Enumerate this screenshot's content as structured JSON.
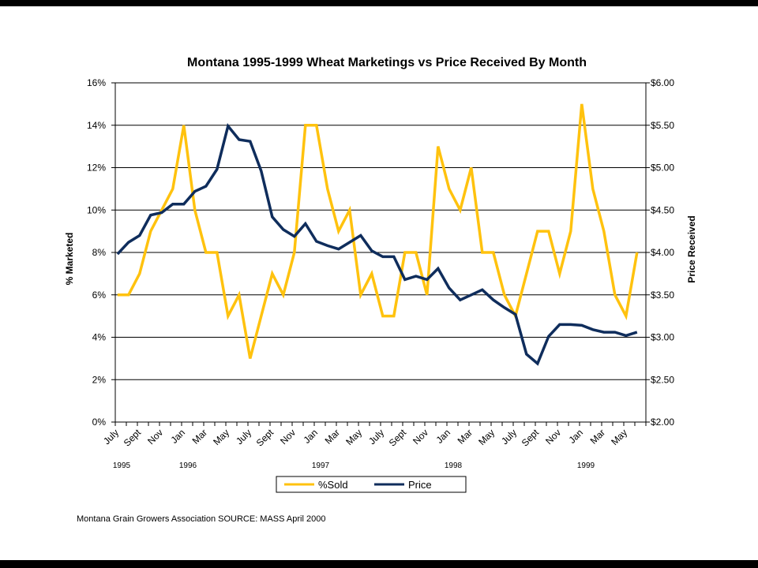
{
  "chart_data": {
    "type": "line",
    "title": "Montana 1995-1999 Wheat Marketings vs Price Received By Month",
    "ylabel_left": "% Marketed",
    "ylabel_right": "Price Received",
    "ylim_left": [
      0,
      16
    ],
    "ylim_right": [
      2.0,
      6.0
    ],
    "yticks_left": [
      "0%",
      "2%",
      "4%",
      "6%",
      "8%",
      "10%",
      "12%",
      "14%",
      "16%"
    ],
    "yticks_right": [
      "$2.00",
      "$2.50",
      "$3.00",
      "$3.50",
      "$4.00",
      "$4.50",
      "$5.00",
      "$5.50",
      "$6.00"
    ],
    "grid": true,
    "legend_position": "bottom",
    "x_labels": [
      "July",
      "",
      "Sept",
      "",
      "Nov",
      "",
      "Jan",
      "",
      "Mar",
      "",
      "May",
      "",
      "July",
      "",
      "Sept",
      "",
      "Nov",
      "",
      "Jan",
      "",
      "Mar",
      "",
      "May",
      "",
      "July",
      "",
      "Sept",
      "",
      "Nov",
      "",
      "Jan",
      "",
      "Mar",
      "",
      "May",
      "",
      "July",
      "",
      "Sept",
      "",
      "Nov",
      "",
      "Jan",
      "",
      "Mar",
      "",
      "May",
      ""
    ],
    "year_labels": [
      {
        "index": 0,
        "text": "1995"
      },
      {
        "index": 6,
        "text": "1996"
      },
      {
        "index": 18,
        "text": "1997"
      },
      {
        "index": 30,
        "text": "1998"
      },
      {
        "index": 42,
        "text": "1999"
      }
    ],
    "series": [
      {
        "name": "%Sold",
        "axis": "left",
        "color": "#FFC20E",
        "values": [
          6,
          6,
          7,
          9,
          10,
          11,
          14,
          10,
          8,
          8,
          5,
          6,
          3,
          5,
          7,
          6,
          8,
          14,
          14,
          11,
          9,
          10,
          6,
          7,
          5,
          5,
          8,
          8,
          6,
          13,
          11,
          10,
          12,
          8,
          8,
          6,
          5,
          7,
          9,
          9,
          7,
          9,
          15,
          11,
          9,
          6,
          5,
          8
        ]
      },
      {
        "name": "Price",
        "axis": "right",
        "color": "#0F2D5C",
        "values": [
          3.98,
          4.12,
          4.2,
          4.44,
          4.47,
          4.57,
          4.57,
          4.72,
          4.78,
          4.98,
          5.49,
          5.33,
          5.31,
          4.96,
          4.42,
          4.27,
          4.19,
          4.34,
          4.13,
          4.08,
          4.04,
          4.12,
          4.2,
          4.02,
          3.95,
          3.95,
          3.68,
          3.72,
          3.68,
          3.81,
          3.58,
          3.44,
          3.5,
          3.56,
          3.44,
          3.35,
          3.27,
          2.8,
          2.69,
          3.01,
          3.15,
          3.15,
          3.14,
          3.09,
          3.06,
          3.06,
          3.02,
          3.06
        ]
      }
    ]
  },
  "footer": "Montana Grain Growers Association  SOURCE:  MASS  April 2000"
}
